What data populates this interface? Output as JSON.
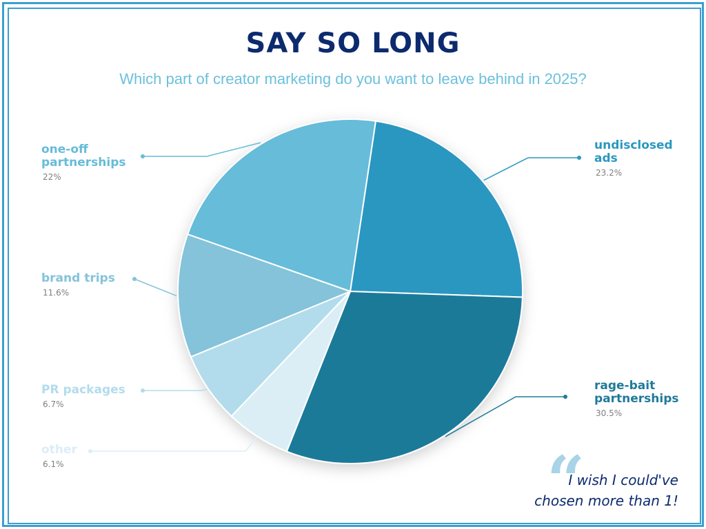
{
  "header": {
    "title": "SAY SO LONG",
    "subtitle": "Which part of creator marketing do you want to leave behind in 2025?"
  },
  "quote": {
    "line1": "I wish I could've",
    "line2": "chosen more than 1!",
    "mark": "“"
  },
  "chart_data": {
    "type": "pie",
    "title": "SAY SO LONG",
    "subtitle": "Which part of creator marketing do you want to leave behind in 2025?",
    "slices": [
      {
        "label_lines": [
          "undisclosed",
          "ads"
        ],
        "value": 23.2,
        "pct_label": "23.2%",
        "color": "#2a97c0"
      },
      {
        "label_lines": [
          "rage-bait",
          "partnerships"
        ],
        "value": 30.5,
        "pct_label": "30.5%",
        "color": "#1f7a99"
      },
      {
        "label_lines": [
          "other"
        ],
        "value": 6.1,
        "pct_label": "6.1%",
        "color": "#dbeef6"
      },
      {
        "label_lines": [
          "PR packages"
        ],
        "value": 6.7,
        "pct_label": "6.7%",
        "color": "#b2dcec"
      },
      {
        "label_lines": [
          "brand trips"
        ],
        "value": 11.6,
        "pct_label": "11.6%",
        "color": "#84c3da"
      },
      {
        "label_lines": [
          "one-off",
          "partnerships"
        ],
        "value": 22,
        "pct_label": "22%",
        "color": "#66bcd9"
      }
    ],
    "label_colors": [
      "#2a97c0",
      "#1f7a99",
      "#dbeef6",
      "#b2dcec",
      "#84c3da",
      "#66bcd9"
    ]
  }
}
